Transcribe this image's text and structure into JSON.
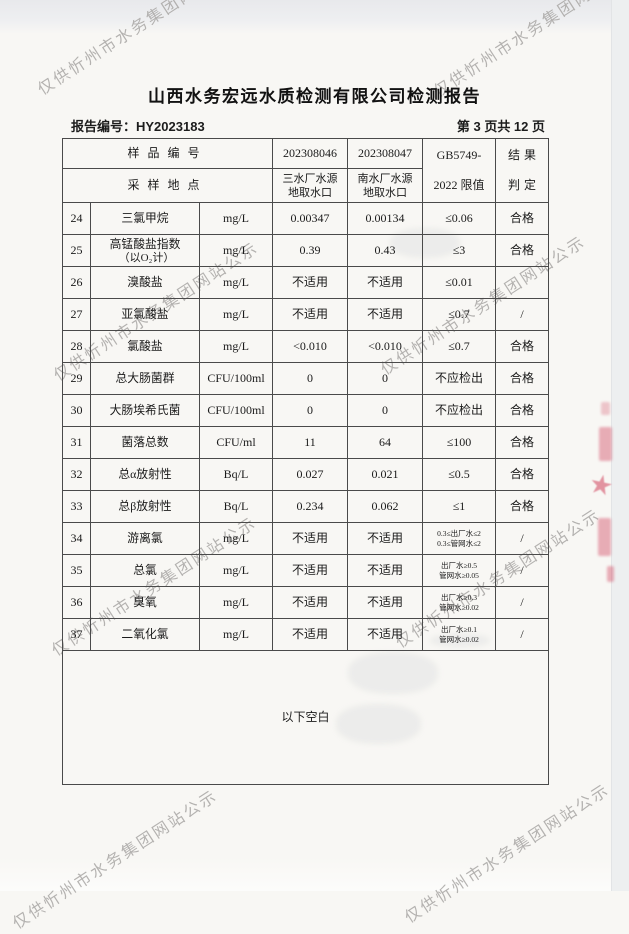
{
  "page": {
    "title": "山西水务宏远水质检测有限公司检测报告",
    "report_no": "报告编号：HY2023183",
    "page_indicator": "第 3 页共 12 页",
    "footer_note": "以下空白"
  },
  "watermark": {
    "text": "仅供忻州市水务集团网站公示"
  },
  "stamp": {
    "star": "★",
    "color": "#d4526a"
  },
  "colors": {
    "watermark_gray": "#a9a7a5",
    "table_border": "#4a4a4a",
    "paper": "#f8f7f4"
  },
  "table": {
    "header": {
      "sample_no_label": "样品编号",
      "sampling_site_label": "采样地点",
      "sample1_no": "202308046",
      "sample2_no": "202308047",
      "site1_line1": "三水厂水源",
      "site1_line2": "地取水口",
      "site2_line1": "南水厂水源",
      "site2_line2": "地取水口",
      "limit_line1": "GB5749-",
      "limit_line2": "2022 限值",
      "result_line1": "结果",
      "result_line2": "判定"
    },
    "rows": [
      {
        "no": "24",
        "name": "三氯甲烷",
        "unit": "mg/L",
        "v1": "0.00347",
        "v2": "0.00134",
        "limit": "≤0.06",
        "result": "合格"
      },
      {
        "no": "25",
        "name": "高锰酸盐指数",
        "name_line2": "（以O₂计）",
        "unit": "mg/L",
        "v1": "0.39",
        "v2": "0.43",
        "limit": "≤3",
        "result": "合格"
      },
      {
        "no": "26",
        "name": "溴酸盐",
        "unit": "mg/L",
        "v1": "不适用",
        "v2": "不适用",
        "limit": "≤0.01",
        "result": ""
      },
      {
        "no": "27",
        "name": "亚氯酸盐",
        "unit": "mg/L",
        "v1": "不适用",
        "v2": "不适用",
        "limit": "≤0.7",
        "result": "/"
      },
      {
        "no": "28",
        "name": "氯酸盐",
        "unit": "mg/L",
        "v1": "<0.010",
        "v2": "<0.010",
        "limit": "≤0.7",
        "result": "合格"
      },
      {
        "no": "29",
        "name": "总大肠菌群",
        "unit": "CFU/100ml",
        "v1": "0",
        "v2": "0",
        "limit": "不应检出",
        "result": "合格"
      },
      {
        "no": "30",
        "name": "大肠埃希氏菌",
        "unit": "CFU/100ml",
        "v1": "0",
        "v2": "0",
        "limit": "不应检出",
        "result": "合格"
      },
      {
        "no": "31",
        "name": "菌落总数",
        "unit": "CFU/ml",
        "v1": "11",
        "v2": "64",
        "limit": "≤100",
        "result": "合格"
      },
      {
        "no": "32",
        "name": "总α放射性",
        "unit": "Bq/L",
        "v1": "0.027",
        "v2": "0.021",
        "limit": "≤0.5",
        "result": "合格"
      },
      {
        "no": "33",
        "name": "总β放射性",
        "unit": "Bq/L",
        "v1": "0.234",
        "v2": "0.062",
        "limit": "≤1",
        "result": "合格"
      },
      {
        "no": "34",
        "name": "游离氯",
        "unit": "mg/L",
        "v1": "不适用",
        "v2": "不适用",
        "limit_lines": [
          "0.3≤出厂水≤2",
          "0.3≤管网水≤2"
        ],
        "result": "/"
      },
      {
        "no": "35",
        "name": "总氯",
        "unit": "mg/L",
        "v1": "不适用",
        "v2": "不适用",
        "limit_lines": [
          "出厂水≥0.5",
          "管网水≥0.05"
        ],
        "result": "/"
      },
      {
        "no": "36",
        "name": "臭氧",
        "unit": "mg/L",
        "v1": "不适用",
        "v2": "不适用",
        "limit_lines": [
          "出厂水≥0.3",
          "管网水≥0.02"
        ],
        "result": "/"
      },
      {
        "no": "37",
        "name": "二氧化氯",
        "unit": "mg/L",
        "v1": "不适用",
        "v2": "不适用",
        "limit_lines": [
          "出厂水≥0.1",
          "管网水≥0.02"
        ],
        "result": "/"
      }
    ]
  }
}
